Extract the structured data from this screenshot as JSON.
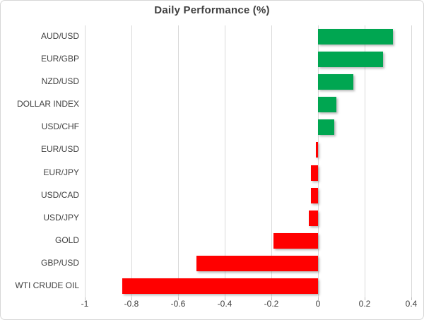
{
  "chart_data": {
    "type": "bar",
    "orientation": "horizontal",
    "title": "Daily Performance (%)",
    "categories": [
      "AUD/USD",
      "EUR/GBP",
      "NZD/USD",
      "DOLLAR INDEX",
      "USD/CHF",
      "EUR/USD",
      "EUR/JPY",
      "USD/CAD",
      "USD/JPY",
      "GOLD",
      "GBP/USD",
      "WTI CRUDE OIL"
    ],
    "values": [
      0.32,
      0.28,
      0.15,
      0.08,
      0.07,
      -0.01,
      -0.03,
      -0.03,
      -0.04,
      -0.19,
      -0.52,
      -0.84
    ],
    "xlim": [
      -1,
      0.4
    ],
    "xticks": [
      -1,
      -0.8,
      -0.6,
      -0.4,
      -0.2,
      0,
      0.2,
      0.4
    ],
    "xtick_labels": [
      "-1",
      "-0.8",
      "-0.6",
      "-0.4",
      "-0.2",
      "0",
      "0.2",
      "0.4"
    ],
    "grid": "vertical-only",
    "legend": "none",
    "colors": {
      "positive_bar": "#00a651",
      "negative_bar": "#ff0000",
      "gridline": "#d9d9d9",
      "axis_text": "#404040",
      "title_text": "#404040"
    }
  }
}
